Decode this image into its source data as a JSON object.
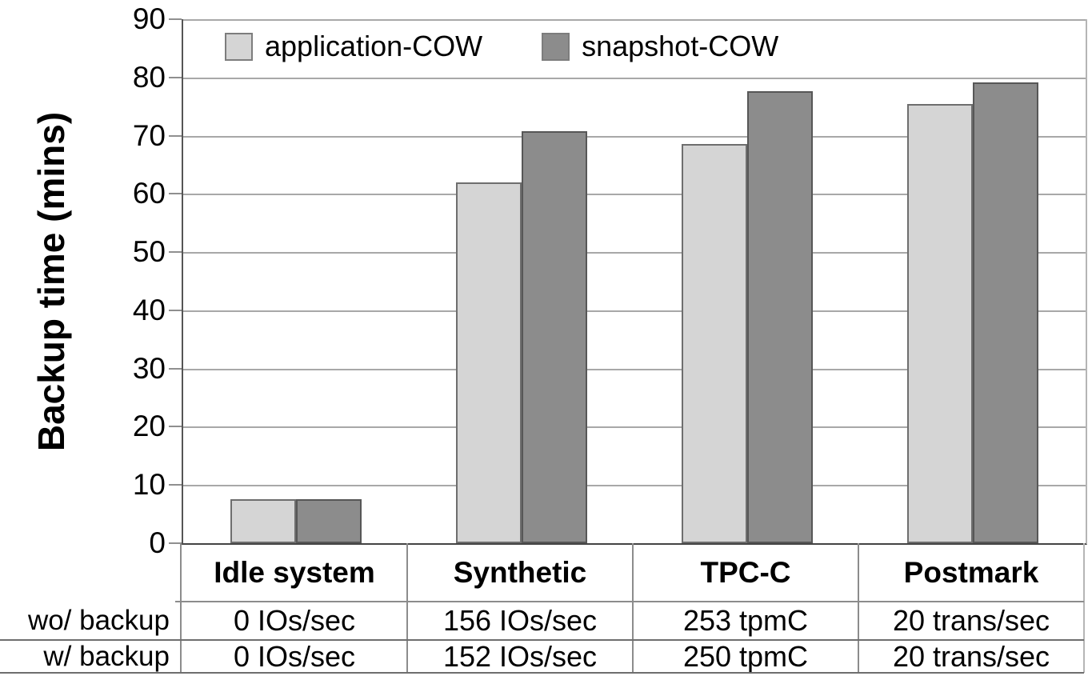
{
  "chart_data": {
    "type": "bar",
    "title": "",
    "ylabel": "Backup time (mins)",
    "xlabel": "",
    "ylim": [
      0,
      90
    ],
    "ytick_step": 10,
    "grid": true,
    "legend_position": "top-left inside plot",
    "categories": [
      "Idle system",
      "Synthetic",
      "TPC-C",
      "Postmark"
    ],
    "series": [
      {
        "name": "application-COW",
        "color": "#d5d5d5",
        "border_color": "#6e6e6e",
        "values": [
          7.5,
          62.0,
          68.5,
          75.4
        ]
      },
      {
        "name": "snapshot-COW",
        "color": "#8c8c8c",
        "border_color": "#575757",
        "values": [
          7.5,
          70.7,
          77.7,
          79.1
        ]
      }
    ]
  },
  "table": {
    "columns": [
      "Idle system",
      "Synthetic",
      "TPC-C",
      "Postmark"
    ],
    "row_labels": [
      "wo/ backup",
      "w/ backup"
    ],
    "rows": [
      [
        "0 IOs/sec",
        "156 IOs/sec",
        "253 tpmC",
        "20 trans/sec"
      ],
      [
        "0 IOs/sec",
        "152 IOs/sec",
        "250 tpmC",
        "20 trans/sec"
      ]
    ]
  },
  "colors": {
    "background": "#ffffff",
    "gridline": "#a8a8a8",
    "axis": "#555555",
    "table_line": "#6e6e6e",
    "text": "#000000"
  }
}
